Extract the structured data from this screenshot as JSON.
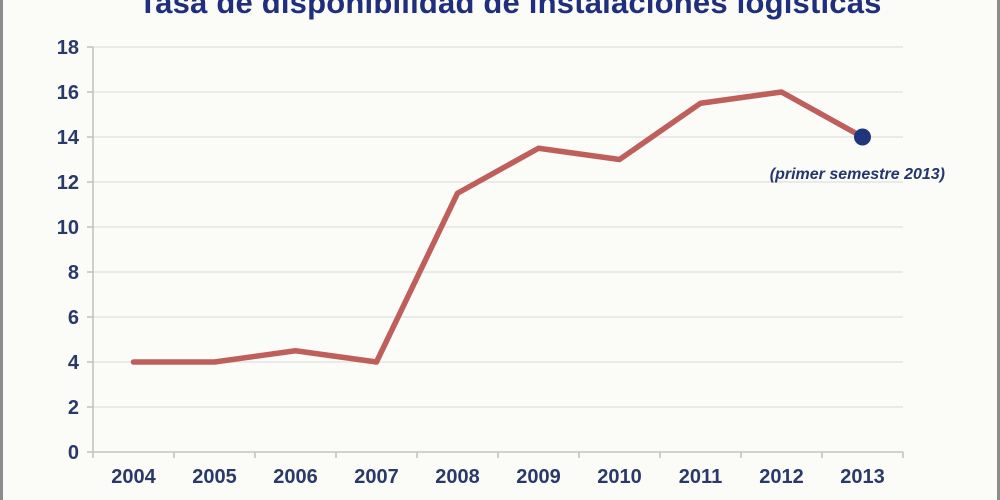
{
  "chart_data": {
    "type": "line",
    "title": "Tasa de disponibilidad de instalaciones logísticas",
    "categories": [
      "2004",
      "2005",
      "2006",
      "2007",
      "2008",
      "2009",
      "2010",
      "2011",
      "2012",
      "2013"
    ],
    "values": [
      4,
      4,
      4.5,
      4,
      11.5,
      13.5,
      13,
      15.5,
      16,
      14
    ],
    "xlabel": "",
    "ylabel": "",
    "ylim": [
      0,
      18
    ],
    "y_ticks": [
      0,
      2,
      4,
      6,
      8,
      10,
      12,
      14,
      16,
      18
    ],
    "grid": true,
    "legend": "none",
    "annotation": "(primer semestre 2013)",
    "last_point_has_marker": true,
    "colors": {
      "line": "#bf5f5b",
      "marker": "#20357b",
      "tick_text": "#2a3a68",
      "title_text": "#202f7c",
      "grid": "#e4e4e4",
      "axis": "#c4c3c2",
      "frame_border": "#8d8d8d",
      "background": "#fbfbf8"
    }
  }
}
